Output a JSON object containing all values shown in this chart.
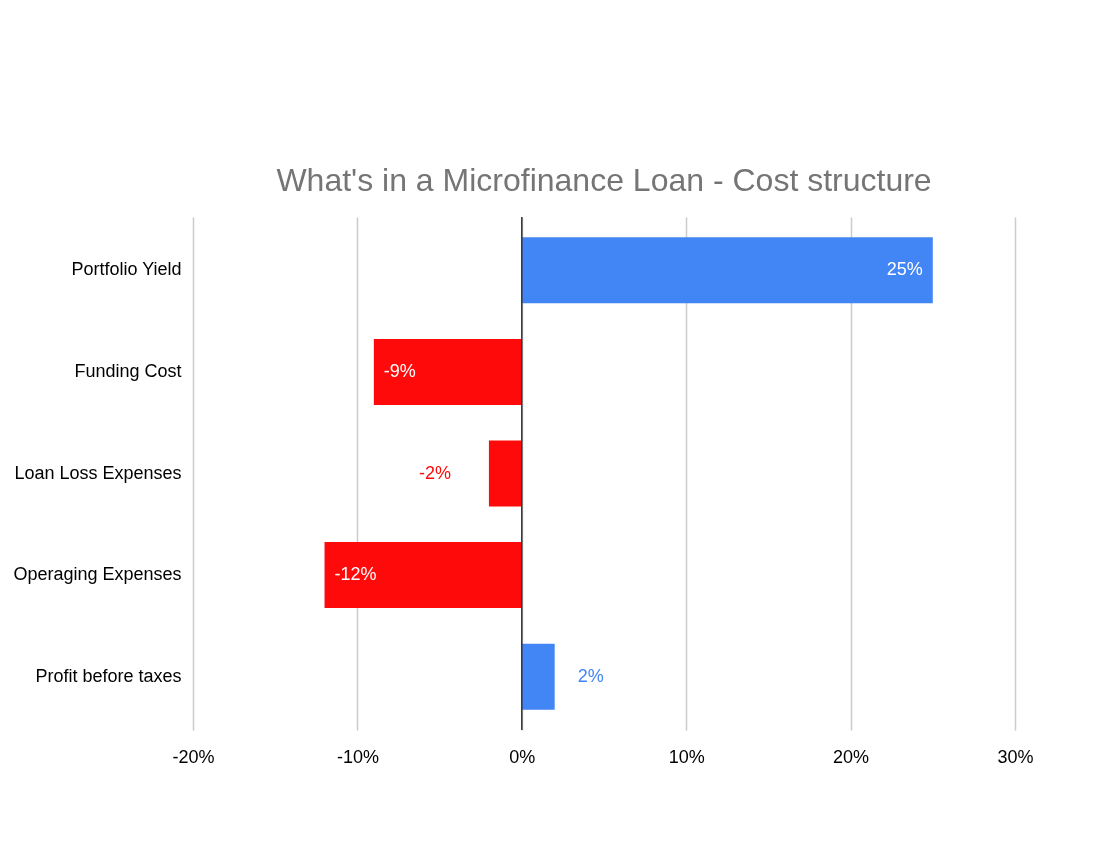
{
  "chart_data": {
    "type": "bar",
    "orientation": "horizontal",
    "title": "What's in a Microfinance Loan - Cost structure",
    "categories": [
      "Portfolio Yield",
      "Funding Cost",
      "Loan Loss Expenses",
      "Operaging Expenses",
      "Profit before taxes"
    ],
    "values": [
      25,
      -9,
      -2,
      -12,
      2
    ],
    "colors": [
      "#4285f4",
      "#ff0a0a",
      "#ff0a0a",
      "#ff0a0a",
      "#4285f4"
    ],
    "value_labels": [
      "25%",
      "-9%",
      "-2%",
      "-12%",
      "2%"
    ],
    "xlim": [
      -20,
      30
    ],
    "xticks": [
      {
        "value": -20,
        "label": "-20%"
      },
      {
        "value": -10,
        "label": "-10%"
      },
      {
        "value": 0,
        "label": "0%"
      },
      {
        "value": 10,
        "label": "10%"
      },
      {
        "value": 20,
        "label": "20%"
      },
      {
        "value": 30,
        "label": "30%"
      }
    ],
    "grid": "x"
  }
}
